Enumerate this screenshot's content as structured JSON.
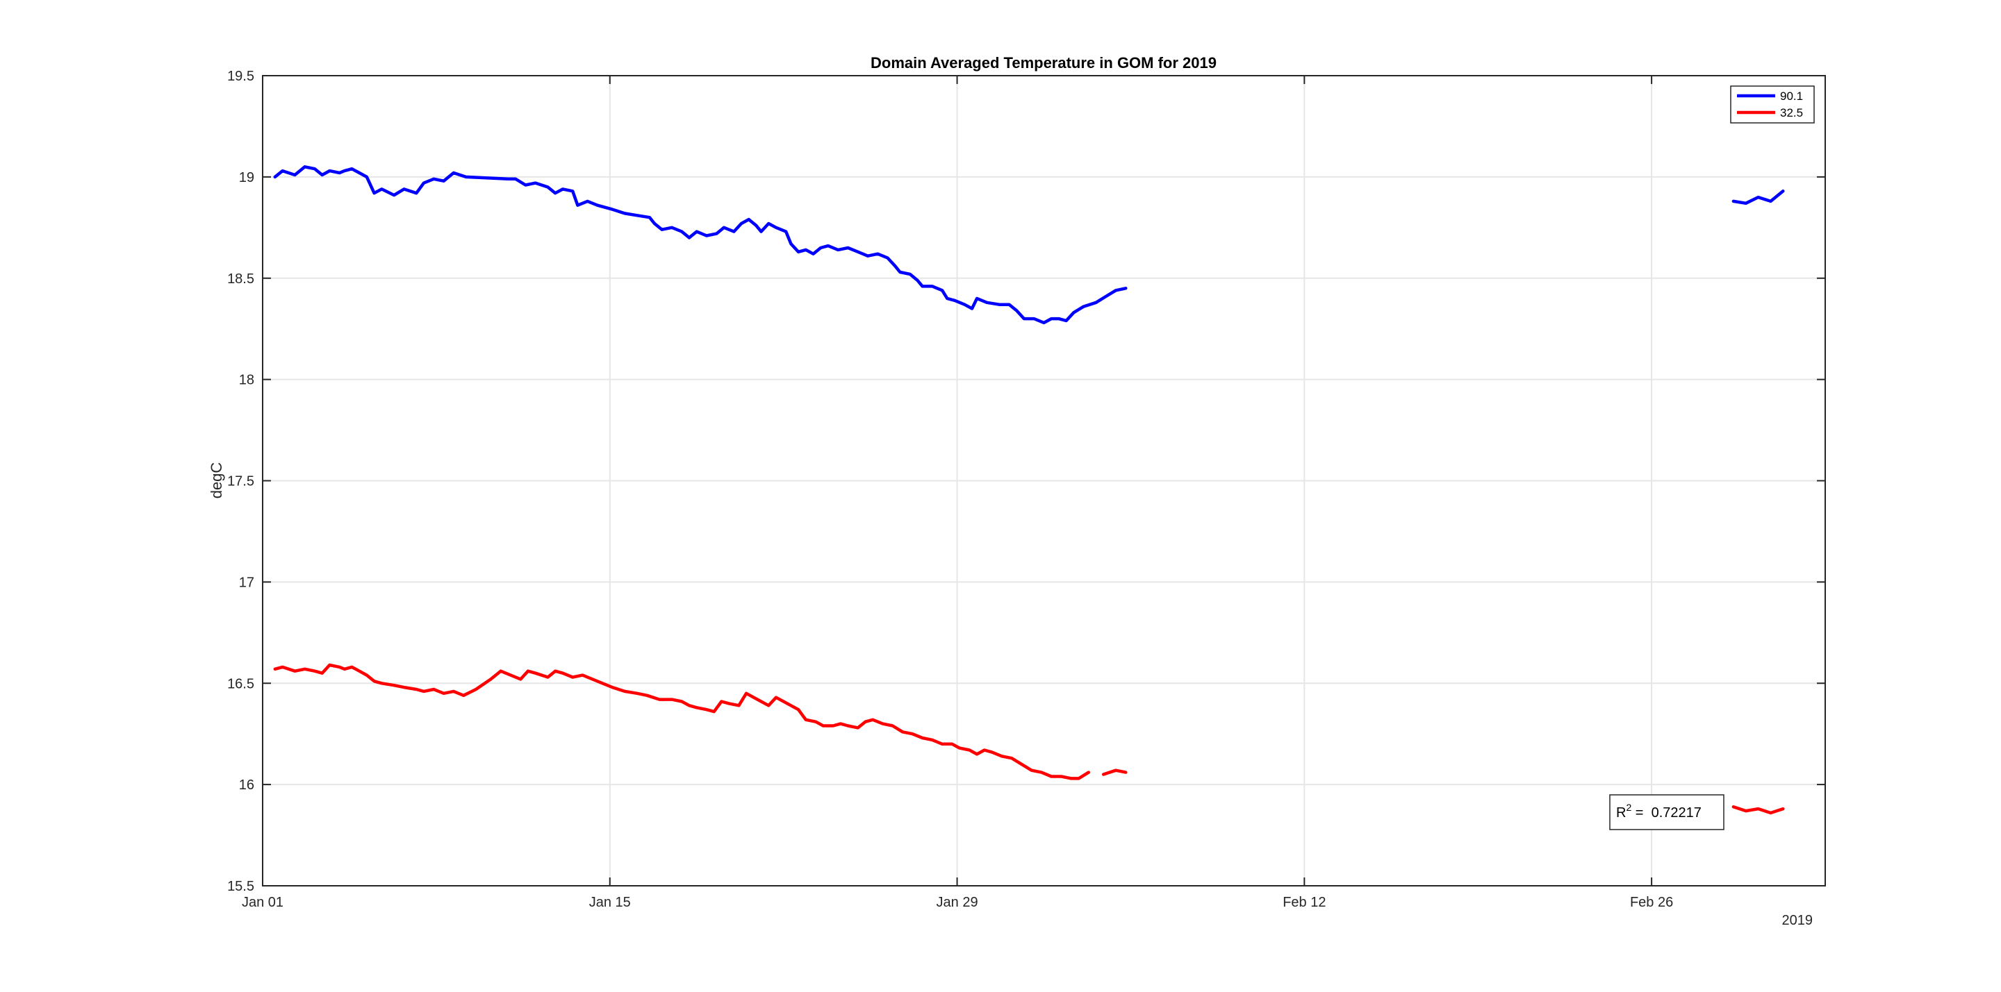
{
  "chart_data": {
    "type": "line",
    "title": "Domain Averaged Temperature in GOM for 2019",
    "xlabel": "",
    "ylabel": "degC",
    "x_axis_secondary_label": "2019",
    "x_unit": "day",
    "x_start_date": "2019-01-01",
    "xlim": [
      0,
      63
    ],
    "ylim": [
      15.5,
      19.5
    ],
    "xticks": [
      0,
      14,
      28,
      42,
      56
    ],
    "xtick_labels": [
      "Jan 01",
      "Jan 15",
      "Jan 29",
      "Feb 12",
      "Feb 26"
    ],
    "yticks": [
      15.5,
      16,
      16.5,
      17,
      17.5,
      18,
      18.5,
      19,
      19.5
    ],
    "ytick_labels": [
      "15.5",
      "16",
      "16.5",
      "17",
      "17.5",
      "18",
      "18.5",
      "19",
      "19.5"
    ],
    "grid": true,
    "legend_position": "top-right",
    "annotation": {
      "label": "R",
      "superscript": "2",
      "equals": " =  ",
      "value": "0.72217"
    },
    "series": [
      {
        "name": "90.1",
        "color": "#0000ff",
        "segments": [
          [
            [
              0.5,
              19.0
            ],
            [
              0.8,
              19.03
            ],
            [
              1.3,
              19.01
            ],
            [
              1.7,
              19.05
            ],
            [
              2.1,
              19.04
            ],
            [
              2.4,
              19.01
            ],
            [
              2.7,
              19.03
            ],
            [
              3.1,
              19.02
            ],
            [
              3.3,
              19.03
            ],
            [
              3.6,
              19.04
            ],
            [
              3.9,
              19.02
            ],
            [
              4.2,
              19.0
            ],
            [
              4.5,
              18.92
            ],
            [
              4.8,
              18.94
            ],
            [
              5.3,
              18.91
            ],
            [
              5.7,
              18.94
            ],
            [
              6.2,
              18.92
            ],
            [
              6.5,
              18.97
            ],
            [
              6.9,
              18.99
            ],
            [
              7.3,
              18.98
            ],
            [
              7.7,
              19.02
            ],
            [
              8.2,
              19.0
            ],
            [
              9.9,
              18.99
            ],
            [
              10.2,
              18.99
            ],
            [
              10.6,
              18.96
            ],
            [
              11.0,
              18.97
            ],
            [
              11.5,
              18.95
            ],
            [
              11.8,
              18.92
            ],
            [
              12.1,
              18.94
            ],
            [
              12.5,
              18.93
            ],
            [
              12.7,
              18.86
            ],
            [
              13.1,
              18.88
            ],
            [
              13.5,
              18.86
            ],
            [
              14.1,
              18.84
            ],
            [
              14.6,
              18.82
            ],
            [
              15.1,
              18.81
            ],
            [
              15.6,
              18.8
            ],
            [
              15.8,
              18.77
            ],
            [
              16.1,
              18.74
            ],
            [
              16.5,
              18.75
            ],
            [
              16.9,
              18.73
            ],
            [
              17.2,
              18.7
            ],
            [
              17.5,
              18.73
            ],
            [
              17.9,
              18.71
            ],
            [
              18.3,
              18.72
            ],
            [
              18.6,
              18.75
            ],
            [
              19.0,
              18.73
            ],
            [
              19.3,
              18.77
            ],
            [
              19.6,
              18.79
            ],
            [
              19.9,
              18.76
            ],
            [
              20.1,
              18.73
            ],
            [
              20.4,
              18.77
            ],
            [
              20.7,
              18.75
            ],
            [
              21.1,
              18.73
            ],
            [
              21.3,
              18.67
            ],
            [
              21.6,
              18.63
            ],
            [
              21.9,
              18.64
            ],
            [
              22.2,
              18.62
            ],
            [
              22.5,
              18.65
            ],
            [
              22.8,
              18.66
            ],
            [
              23.2,
              18.64
            ],
            [
              23.6,
              18.65
            ],
            [
              24.0,
              18.63
            ],
            [
              24.4,
              18.61
            ],
            [
              24.8,
              18.62
            ],
            [
              25.2,
              18.6
            ],
            [
              25.5,
              18.56
            ],
            [
              25.7,
              18.53
            ],
            [
              26.1,
              18.52
            ],
            [
              26.4,
              18.49
            ],
            [
              26.6,
              18.46
            ],
            [
              27.0,
              18.46
            ],
            [
              27.4,
              18.44
            ],
            [
              27.6,
              18.4
            ],
            [
              27.9,
              18.39
            ],
            [
              28.3,
              18.37
            ],
            [
              28.6,
              18.35
            ],
            [
              28.8,
              18.4
            ],
            [
              29.2,
              18.38
            ],
            [
              29.7,
              18.37
            ],
            [
              30.1,
              18.37
            ],
            [
              30.4,
              18.34
            ],
            [
              30.7,
              18.3
            ],
            [
              31.1,
              18.3
            ],
            [
              31.5,
              18.28
            ],
            [
              31.8,
              18.3
            ],
            [
              32.1,
              18.3
            ],
            [
              32.4,
              18.29
            ],
            [
              32.7,
              18.33
            ],
            [
              33.1,
              18.36
            ],
            [
              33.6,
              18.38
            ],
            [
              34.0,
              18.41
            ],
            [
              34.4,
              18.44
            ],
            [
              34.8,
              18.45
            ]
          ],
          [
            [
              59.3,
              18.88
            ],
            [
              59.8,
              18.87
            ],
            [
              60.3,
              18.9
            ],
            [
              60.8,
              18.88
            ],
            [
              61.3,
              18.93
            ]
          ]
        ]
      },
      {
        "name": "32.5",
        "color": "#ff0000",
        "segments": [
          [
            [
              0.5,
              16.57
            ],
            [
              0.8,
              16.58
            ],
            [
              1.3,
              16.56
            ],
            [
              1.7,
              16.57
            ],
            [
              2.1,
              16.56
            ],
            [
              2.4,
              16.55
            ],
            [
              2.7,
              16.59
            ],
            [
              3.1,
              16.58
            ],
            [
              3.3,
              16.57
            ],
            [
              3.6,
              16.58
            ],
            [
              3.9,
              16.56
            ],
            [
              4.2,
              16.54
            ],
            [
              4.5,
              16.51
            ],
            [
              4.8,
              16.5
            ],
            [
              5.3,
              16.49
            ],
            [
              5.7,
              16.48
            ],
            [
              6.2,
              16.47
            ],
            [
              6.5,
              16.46
            ],
            [
              6.9,
              16.47
            ],
            [
              7.3,
              16.45
            ],
            [
              7.7,
              16.46
            ],
            [
              8.1,
              16.44
            ],
            [
              8.6,
              16.47
            ],
            [
              9.2,
              16.52
            ],
            [
              9.6,
              16.56
            ],
            [
              10.0,
              16.54
            ],
            [
              10.4,
              16.52
            ],
            [
              10.7,
              16.56
            ],
            [
              11.0,
              16.55
            ],
            [
              11.5,
              16.53
            ],
            [
              11.8,
              16.56
            ],
            [
              12.1,
              16.55
            ],
            [
              12.5,
              16.53
            ],
            [
              12.9,
              16.54
            ],
            [
              13.3,
              16.52
            ],
            [
              13.7,
              16.5
            ],
            [
              14.1,
              16.48
            ],
            [
              14.6,
              16.46
            ],
            [
              15.1,
              16.45
            ],
            [
              15.5,
              16.44
            ],
            [
              16.0,
              16.42
            ],
            [
              16.5,
              16.42
            ],
            [
              16.9,
              16.41
            ],
            [
              17.2,
              16.39
            ],
            [
              17.5,
              16.38
            ],
            [
              17.9,
              16.37
            ],
            [
              18.2,
              16.36
            ],
            [
              18.5,
              16.41
            ],
            [
              18.8,
              16.4
            ],
            [
              19.2,
              16.39
            ],
            [
              19.5,
              16.45
            ],
            [
              19.8,
              16.43
            ],
            [
              20.1,
              16.41
            ],
            [
              20.4,
              16.39
            ],
            [
              20.7,
              16.43
            ],
            [
              21.0,
              16.41
            ],
            [
              21.3,
              16.39
            ],
            [
              21.6,
              16.37
            ],
            [
              21.9,
              16.32
            ],
            [
              22.3,
              16.31
            ],
            [
              22.6,
              16.29
            ],
            [
              23.0,
              16.29
            ],
            [
              23.3,
              16.3
            ],
            [
              23.6,
              16.29
            ],
            [
              24.0,
              16.28
            ],
            [
              24.3,
              16.31
            ],
            [
              24.6,
              16.32
            ],
            [
              25.0,
              16.3
            ],
            [
              25.4,
              16.29
            ],
            [
              25.8,
              16.26
            ],
            [
              26.2,
              16.25
            ],
            [
              26.6,
              16.23
            ],
            [
              27.0,
              16.22
            ],
            [
              27.4,
              16.2
            ],
            [
              27.8,
              16.2
            ],
            [
              28.1,
              16.18
            ],
            [
              28.5,
              16.17
            ],
            [
              28.8,
              16.15
            ],
            [
              29.1,
              16.17
            ],
            [
              29.4,
              16.16
            ],
            [
              29.8,
              16.14
            ],
            [
              30.2,
              16.13
            ],
            [
              30.6,
              16.1
            ],
            [
              31.0,
              16.07
            ],
            [
              31.4,
              16.06
            ],
            [
              31.8,
              16.04
            ],
            [
              32.2,
              16.04
            ],
            [
              32.6,
              16.03
            ],
            [
              32.9,
              16.03
            ],
            [
              33.3,
              16.06
            ]
          ],
          [
            [
              33.9,
              16.05
            ],
            [
              34.4,
              16.07
            ],
            [
              34.8,
              16.06
            ]
          ],
          [
            [
              59.3,
              15.89
            ],
            [
              59.8,
              15.87
            ],
            [
              60.3,
              15.88
            ],
            [
              60.8,
              15.86
            ],
            [
              61.3,
              15.88
            ]
          ]
        ]
      }
    ]
  }
}
